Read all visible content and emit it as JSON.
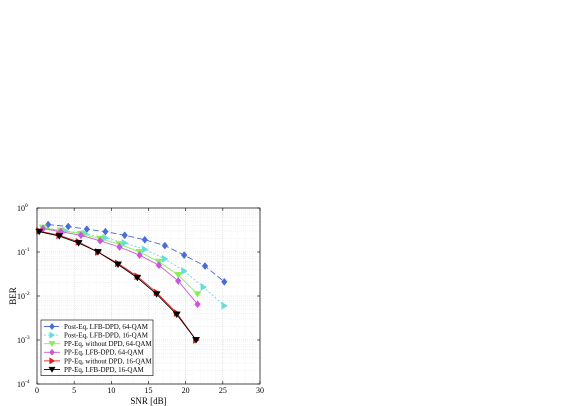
{
  "chart_data": {
    "type": "line",
    "xlabel": "SNR  [dB]",
    "ylabel": "BER",
    "xlim": [
      0,
      30
    ],
    "ylim": [
      0.0001,
      1
    ],
    "yscale": "log",
    "grid": true,
    "legend_position": "bottom-left",
    "x_ticks": [
      "0",
      "5",
      "10",
      "15",
      "20",
      "25",
      "30"
    ],
    "y_ticks": [
      {
        "base": "10",
        "exp": "0",
        "value": 1
      },
      {
        "base": "10",
        "exp": "-1",
        "value": 0.1
      },
      {
        "base": "10",
        "exp": "-2",
        "value": 0.01
      },
      {
        "base": "10",
        "exp": "-3",
        "value": 0.001
      },
      {
        "base": "10",
        "exp": "-4",
        "value": 0.0001
      }
    ],
    "series": [
      {
        "name": "Post-Eq, LFB-DPD, 64-QAM",
        "color": "#4a6bd8",
        "marker": "diamond",
        "dash": "6,3",
        "x": [
          1.5,
          4.2,
          6.7,
          9.2,
          11.8,
          14.5,
          17.2,
          19.8,
          22.6,
          25.2
        ],
        "y": [
          0.42,
          0.38,
          0.33,
          0.29,
          0.24,
          0.19,
          0.14,
          0.085,
          0.048,
          0.021
        ]
      },
      {
        "name": "Post-Eq, LFB-DPD, 16-QAM",
        "color": "#66dddd",
        "marker": "triangle-right",
        "dash": "2,2",
        "x": [
          1.0,
          3.8,
          6.5,
          9.2,
          11.8,
          14.5,
          17.2,
          19.8,
          22.4,
          25.2
        ],
        "y": [
          0.34,
          0.3,
          0.26,
          0.21,
          0.16,
          0.115,
          0.07,
          0.037,
          0.016,
          0.006
        ]
      },
      {
        "name": "PP-Eq, without DPD, 64-QAM",
        "color": "#88ee55",
        "marker": "triangle-down",
        "dash": "",
        "x": [
          0.8,
          3.2,
          5.9,
          8.5,
          11.1,
          13.8,
          16.4,
          19.0,
          21.6
        ],
        "y": [
          0.36,
          0.31,
          0.26,
          0.2,
          0.15,
          0.1,
          0.06,
          0.03,
          0.011
        ]
      },
      {
        "name": "PP-Eq, LFB-DPD, 64-QAM",
        "color": "#cc55dd",
        "marker": "diamond",
        "dash": "",
        "x": [
          0.8,
          3.2,
          5.9,
          8.5,
          11.1,
          13.8,
          16.4,
          19.0,
          21.6
        ],
        "y": [
          0.34,
          0.29,
          0.24,
          0.18,
          0.13,
          0.085,
          0.05,
          0.022,
          0.0065
        ]
      },
      {
        "name": "PP-Eq, without DPD, 16-QAM",
        "color": "#e02020",
        "marker": "triangle-right",
        "dash": "",
        "x": [
          0.3,
          3.0,
          5.6,
          8.2,
          10.9,
          13.5,
          16.1,
          18.8,
          21.4
        ],
        "y": [
          0.3,
          0.24,
          0.17,
          0.1,
          0.055,
          0.028,
          0.012,
          0.0041,
          0.001
        ]
      },
      {
        "name": "PP-Eq, LFB-DPD, 16-QAM",
        "color": "#000000",
        "marker": "triangle-down",
        "dash": "",
        "x": [
          0.3,
          3.0,
          5.6,
          8.2,
          10.9,
          13.5,
          16.1,
          18.8,
          21.4
        ],
        "y": [
          0.29,
          0.23,
          0.16,
          0.1,
          0.052,
          0.026,
          0.011,
          0.0038,
          0.001
        ]
      }
    ]
  }
}
